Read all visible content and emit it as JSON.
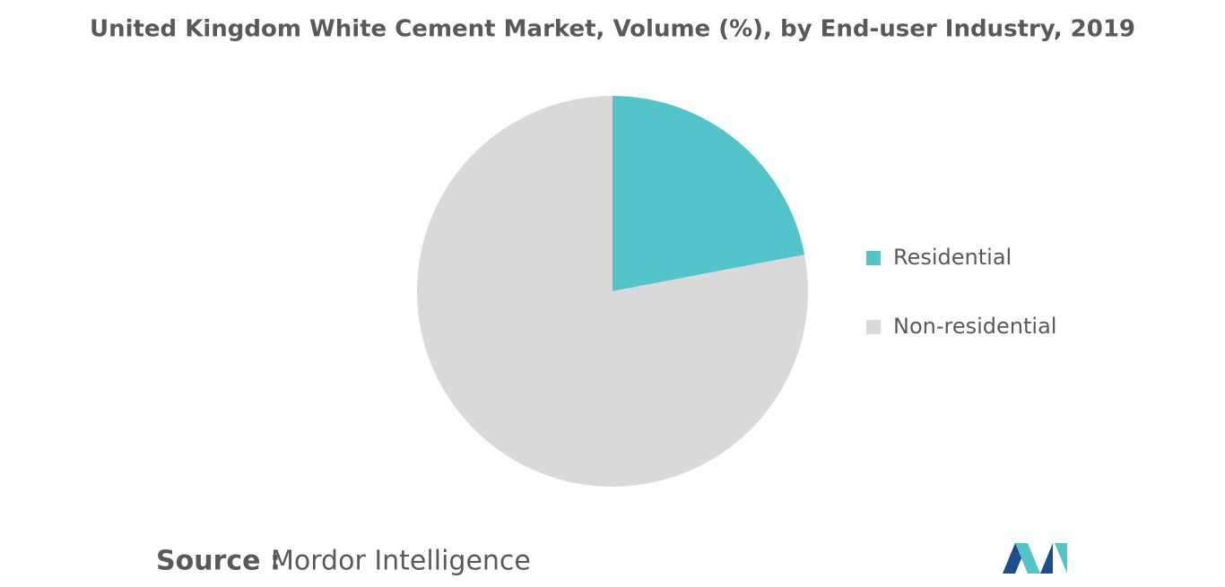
{
  "chart_data": {
    "type": "pie",
    "title": "United Kingdom White Cement Market, Volume (%), by End-user Industry, 2019",
    "categories": [
      "Residential",
      "Non-residential"
    ],
    "values": [
      22,
      78
    ],
    "colors": [
      "#53c4ca",
      "#d9d9d9"
    ],
    "legend_position": "right",
    "source_label": "Source :",
    "source": "Mordor Intelligence"
  }
}
